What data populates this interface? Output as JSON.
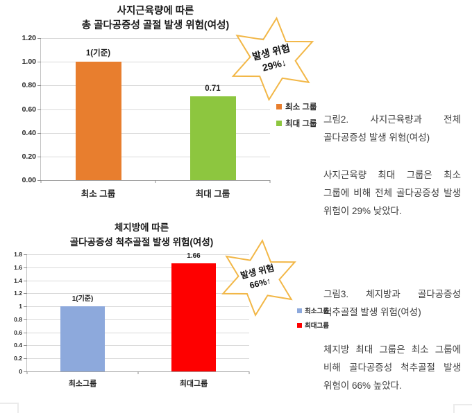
{
  "chart_data": [
    {
      "type": "bar",
      "title_lines": [
        "사지근육량에 따른",
        "총 골다공증성 골절 발생 위험(여성)"
      ],
      "categories": [
        "최소 그룹",
        "최대 그룹"
      ],
      "values": [
        1.0,
        0.71
      ],
      "bar_labels": [
        "1(기준)",
        "0.71"
      ],
      "bar_colors": [
        "#e87e2e",
        "#8dc63f"
      ],
      "yticks": [
        "1.20",
        "1.00",
        "0.80",
        "0.60",
        "0.40",
        "0.20",
        "0.00"
      ],
      "ylim": [
        0,
        1.2
      ],
      "grid": true,
      "legend_position": "right",
      "legend": [
        {
          "label": "최소 그룹",
          "color": "#e87e2e"
        },
        {
          "label": "최대 그룹",
          "color": "#8dc63f"
        }
      ],
      "badge": {
        "line1": "발생 위험",
        "line2": "29%↓",
        "border_color": "#f2b747"
      }
    },
    {
      "type": "bar",
      "title_lines": [
        "체지방에 따른",
        "골다공증성 척추골절 발생 위험(여성)"
      ],
      "categories": [
        "최소그룹",
        "최대그룹"
      ],
      "values": [
        1.0,
        1.66
      ],
      "bar_labels": [
        "1(기준)",
        "1.66"
      ],
      "bar_colors": [
        "#8da9dc",
        "#fe0000"
      ],
      "yticks": [
        "1.8",
        "1.6",
        "1.4",
        "1.2",
        "1",
        "0.8",
        "0.6",
        "0.4",
        "0.2",
        "0"
      ],
      "ylim": [
        0,
        1.8
      ],
      "grid": true,
      "legend_position": "right",
      "legend": [
        {
          "label": "최소그룹",
          "color": "#8da9dc"
        },
        {
          "label": "최대그룹",
          "color": "#fe0000"
        }
      ],
      "badge": {
        "line1": "발생 위험",
        "line2": "66%↑",
        "border_color": "#f2b747"
      }
    }
  ],
  "annotations": [
    {
      "caption": "그림2.  사지근육량과  전체  골다공증성 발생 위험(여성)",
      "body": "사지근육량 최대 그룹은 최소 그룹에 비해 전체 골다공증성 발생 위험이 29% 낮았다."
    },
    {
      "caption": "그림3.  체지방과  골다공증성  척추골절 발생 위험(여성)",
      "body": "체지방 최대 그룹은 최소 그룹에 비해 골다공증성 척추골절 발생 위험이 66% 높았다."
    }
  ],
  "colors": {
    "gridline": "#d9d9d9",
    "axis": "#a3a3a3",
    "star_border": "#f2b747",
    "text_dark": "#1f1f1f",
    "caption_text": "#3c3c3c"
  }
}
